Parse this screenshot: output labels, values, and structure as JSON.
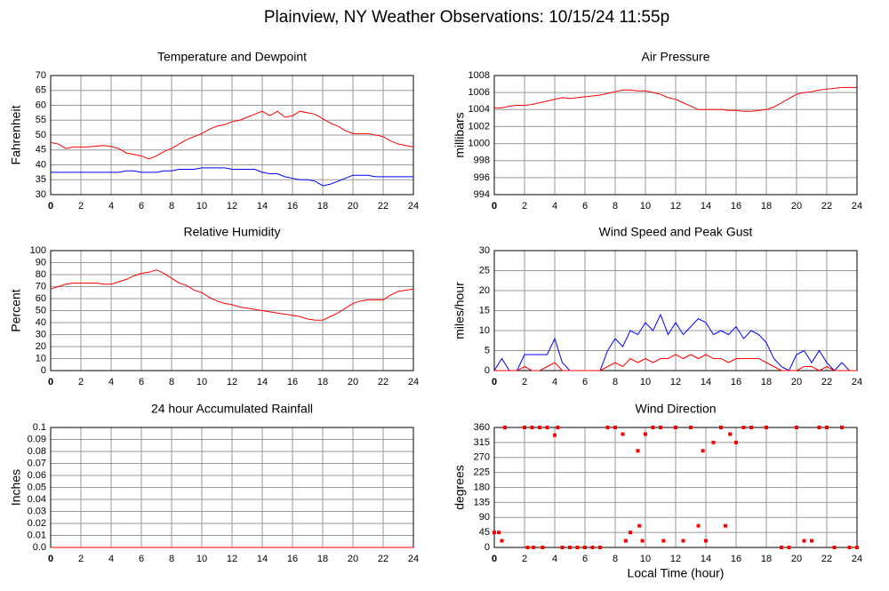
{
  "title": "Plainview, NY Weather Observations: 10/15/24 11:55p",
  "chart_data": [
    {
      "type": "line",
      "title": "Temperature and Dewpoint",
      "ylabel": "Fahrenheit",
      "x": [
        0,
        0.5,
        1,
        1.5,
        2,
        2.5,
        3,
        3.5,
        4,
        4.5,
        5,
        5.5,
        6,
        6.5,
        7,
        7.5,
        8,
        8.5,
        9,
        9.5,
        10,
        10.5,
        11,
        11.5,
        12,
        12.5,
        13,
        13.5,
        14,
        14.5,
        15,
        15.5,
        16,
        16.5,
        17,
        17.5,
        18,
        18.5,
        19,
        19.5,
        20,
        20.5,
        21,
        21.5,
        22,
        22.5,
        23,
        23.5,
        24
      ],
      "series": [
        {
          "color": "#ff0000",
          "values": [
            47.5,
            47,
            45.5,
            46,
            46,
            46,
            46.3,
            46.5,
            46.2,
            45.5,
            44,
            43.5,
            43,
            42,
            43,
            44.5,
            45.5,
            47,
            48.5,
            49.5,
            50.5,
            52,
            53,
            53.5,
            54.5,
            55,
            56,
            57,
            58,
            56.5,
            58,
            56,
            56.5,
            58,
            57.5,
            57,
            55.5,
            54,
            53,
            51.5,
            50.5,
            50.5,
            50.5,
            50,
            49.5,
            48,
            47,
            46.5,
            46
          ]
        },
        {
          "color": "#0000ff",
          "values": [
            37.5,
            37.5,
            37.5,
            37.5,
            37.5,
            37.5,
            37.5,
            37.5,
            37.5,
            37.5,
            38,
            38,
            37.5,
            37.5,
            37.5,
            38,
            38,
            38.5,
            38.5,
            38.5,
            39,
            39,
            39,
            39,
            38.5,
            38.5,
            38.5,
            38.5,
            37.5,
            37,
            37,
            36,
            35.5,
            35,
            35,
            34.5,
            33,
            33.5,
            34.5,
            35.5,
            36.5,
            36.5,
            36.5,
            36,
            36,
            36,
            36,
            36,
            36
          ]
        }
      ],
      "xlim": [
        0,
        24
      ],
      "xticks": [
        0,
        2,
        4,
        6,
        8,
        10,
        12,
        14,
        16,
        18,
        20,
        22,
        24
      ],
      "ylim": [
        30,
        70
      ],
      "yticks": [
        30,
        35,
        40,
        45,
        50,
        55,
        60,
        65,
        70
      ],
      "grid": true
    },
    {
      "type": "line",
      "title": "Air Pressure",
      "ylabel": "millibars",
      "x": [
        0,
        0.5,
        1,
        1.5,
        2,
        2.5,
        3,
        3.5,
        4,
        4.5,
        5,
        5.5,
        6,
        6.5,
        7,
        7.5,
        8,
        8.5,
        9,
        9.5,
        10,
        10.5,
        11,
        11.5,
        12,
        12.5,
        13,
        13.5,
        14,
        14.5,
        15,
        15.5,
        16,
        16.5,
        17,
        17.5,
        18,
        18.5,
        19,
        19.5,
        20,
        20.5,
        21,
        21.5,
        22,
        22.5,
        23,
        23.5,
        24
      ],
      "series": [
        {
          "color": "#ff0000",
          "values": [
            1004.2,
            1004.2,
            1004.4,
            1004.5,
            1004.5,
            1004.6,
            1004.8,
            1005,
            1005.2,
            1005.4,
            1005.3,
            1005.4,
            1005.5,
            1005.6,
            1005.7,
            1005.9,
            1006.1,
            1006.3,
            1006.3,
            1006.2,
            1006.2,
            1006,
            1005.8,
            1005.4,
            1005.2,
            1004.8,
            1004.4,
            1004,
            1004,
            1004,
            1004,
            1003.9,
            1003.9,
            1003.8,
            1003.8,
            1003.9,
            1004,
            1004.3,
            1004.8,
            1005.3,
            1005.8,
            1006,
            1006.1,
            1006.3,
            1006.4,
            1006.5,
            1006.6,
            1006.6,
            1006.6
          ]
        }
      ],
      "xlim": [
        0,
        24
      ],
      "xticks": [
        0,
        2,
        4,
        6,
        8,
        10,
        12,
        14,
        16,
        18,
        20,
        22,
        24
      ],
      "ylim": [
        994,
        1008
      ],
      "yticks": [
        994,
        996,
        998,
        1000,
        1002,
        1004,
        1006,
        1008
      ],
      "grid": true
    },
    {
      "type": "line",
      "title": "Relative Humidity",
      "ylabel": "Percent",
      "x": [
        0,
        0.5,
        1,
        1.5,
        2,
        2.5,
        3,
        3.5,
        4,
        4.5,
        5,
        5.5,
        6,
        6.5,
        7,
        7.5,
        8,
        8.5,
        9,
        9.5,
        10,
        10.5,
        11,
        11.5,
        12,
        12.5,
        13,
        13.5,
        14,
        14.5,
        15,
        15.5,
        16,
        16.5,
        17,
        17.5,
        18,
        18.5,
        19,
        19.5,
        20,
        20.5,
        21,
        21.5,
        22,
        22.5,
        23,
        23.5,
        24
      ],
      "series": [
        {
          "color": "#ff0000",
          "values": [
            68,
            70,
            72,
            73,
            73,
            73,
            73,
            72,
            72,
            74,
            76,
            79,
            81,
            82,
            84,
            81,
            77,
            73,
            71,
            67,
            65,
            61,
            58,
            56,
            55,
            53,
            52,
            51,
            50,
            49,
            48,
            47,
            46,
            45,
            43,
            42,
            42,
            45,
            48,
            52,
            56,
            58,
            59,
            59,
            59,
            63,
            66,
            67,
            68
          ]
        }
      ],
      "xlim": [
        0,
        24
      ],
      "xticks": [
        0,
        2,
        4,
        6,
        8,
        10,
        12,
        14,
        16,
        18,
        20,
        22,
        24
      ],
      "ylim": [
        0,
        100
      ],
      "yticks": [
        0,
        10,
        20,
        30,
        40,
        50,
        60,
        70,
        80,
        90,
        100
      ],
      "grid": true
    },
    {
      "type": "line",
      "title": "Wind Speed and Peak Gust",
      "ylabel": "miles/hour",
      "x": [
        0,
        0.5,
        1,
        1.5,
        2,
        2.5,
        3,
        3.5,
        4,
        4.5,
        5,
        5.5,
        6,
        6.5,
        7,
        7.5,
        8,
        8.5,
        9,
        9.5,
        10,
        10.5,
        11,
        11.5,
        12,
        12.5,
        13,
        13.5,
        14,
        14.5,
        15,
        15.5,
        16,
        16.5,
        17,
        17.5,
        18,
        18.5,
        19,
        19.5,
        20,
        20.5,
        21,
        21.5,
        22,
        22.5,
        23,
        23.5,
        24
      ],
      "series": [
        {
          "color": "#0000ff",
          "values": [
            0,
            3,
            0,
            0,
            4,
            4,
            4,
            4,
            8,
            2,
            0,
            0,
            0,
            0,
            0,
            5,
            8,
            6,
            10,
            9,
            12,
            10,
            14,
            9,
            12,
            9,
            11,
            13,
            12,
            9,
            10,
            9,
            11,
            8,
            10,
            9,
            7,
            3,
            1,
            0,
            4,
            5,
            2,
            5,
            2,
            0,
            2,
            0,
            0
          ]
        },
        {
          "color": "#ff0000",
          "values": [
            0,
            0,
            0,
            0,
            1,
            0,
            0,
            1,
            2,
            0,
            0,
            0,
            0,
            0,
            0,
            1,
            2,
            1,
            3,
            2,
            3,
            2,
            3,
            3,
            4,
            3,
            4,
            3,
            4,
            3,
            3,
            2,
            3,
            3,
            3,
            3,
            2,
            1,
            0,
            0,
            0,
            1,
            1,
            0,
            1,
            0,
            0,
            0,
            0
          ]
        }
      ],
      "xlim": [
        0,
        24
      ],
      "xticks": [
        0,
        2,
        4,
        6,
        8,
        10,
        12,
        14,
        16,
        18,
        20,
        22,
        24
      ],
      "ylim": [
        0,
        30
      ],
      "yticks": [
        0,
        5,
        10,
        15,
        20,
        25,
        30
      ],
      "grid": true
    },
    {
      "type": "line",
      "title": "24 hour Accumulated Rainfall",
      "ylabel": "Inches",
      "x": [
        0,
        24
      ],
      "series": [
        {
          "color": "#ff0000",
          "values": [
            0,
            0
          ]
        }
      ],
      "xlim": [
        0,
        24
      ],
      "xticks": [
        0,
        2,
        4,
        6,
        8,
        10,
        12,
        14,
        16,
        18,
        20,
        22,
        24
      ],
      "ylim": [
        0,
        0.1
      ],
      "yticks": [
        {
          "value": 0,
          "label": "0.0"
        },
        0.01,
        0.02,
        0.03,
        0.04,
        0.05,
        0.06,
        0.07,
        0.08,
        0.09,
        0.1
      ],
      "grid": true
    },
    {
      "type": "scatter",
      "title": "Wind Direction",
      "ylabel": "degrees",
      "xlabel": "Local Time (hour)",
      "x": [
        0,
        0.3,
        0.5,
        0.7,
        2,
        2.5,
        3,
        3.5,
        4,
        4.2,
        2.2,
        2.6,
        3.2,
        4.5,
        5,
        5.5,
        6,
        6.5,
        7,
        7.5,
        8,
        8.5,
        8.7,
        9,
        9.5,
        9.6,
        9.8,
        10,
        10.5,
        11,
        11.2,
        12,
        12.5,
        13,
        13.5,
        13.8,
        14,
        14.5,
        15,
        15.3,
        15.6,
        16,
        16.5,
        17,
        18,
        19,
        19.5,
        20,
        20.5,
        21,
        21.5,
        22,
        22.5,
        23,
        23.5,
        24
      ],
      "series": [
        {
          "color": "#ff0000",
          "values": [
            45,
            45,
            20,
            360,
            360,
            360,
            360,
            360,
            337,
            360,
            0,
            0,
            0,
            0,
            0,
            0,
            0,
            0,
            0,
            360,
            360,
            340,
            20,
            45,
            290,
            65,
            20,
            340,
            360,
            360,
            20,
            360,
            20,
            360,
            65,
            290,
            20,
            315,
            360,
            65,
            340,
            315,
            360,
            360,
            360,
            0,
            0,
            360,
            20,
            20,
            360,
            360,
            0,
            360,
            0,
            0
          ]
        }
      ],
      "xlim": [
        0,
        24
      ],
      "xticks": [
        0,
        2,
        4,
        6,
        8,
        10,
        12,
        14,
        16,
        18,
        20,
        22,
        24
      ],
      "ylim": [
        0,
        360
      ],
      "yticks": [
        0,
        45,
        90,
        135,
        180,
        225,
        270,
        315,
        360
      ],
      "grid": true
    }
  ]
}
